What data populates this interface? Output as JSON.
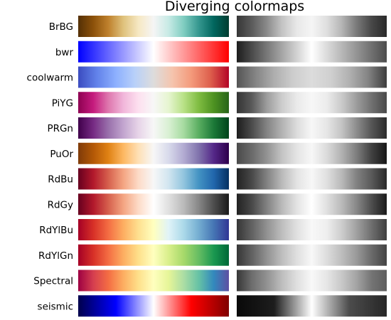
{
  "chart_data": {
    "type": "heatmap",
    "title": "Diverging colormaps",
    "panels": [
      "color",
      "grayscale"
    ],
    "colormaps": [
      {
        "name": "BrBG",
        "colors": [
          "#543005",
          "#8c510a",
          "#bf812d",
          "#dfc27d",
          "#f6e8c3",
          "#f5f5f5",
          "#c7eae5",
          "#80cdc1",
          "#35978f",
          "#01665e",
          "#003c30"
        ]
      },
      {
        "name": "bwr",
        "colors": [
          "#0000ff",
          "#ffffff",
          "#ff0000"
        ]
      },
      {
        "name": "coolwarm",
        "colors": [
          "#3b4cc0",
          "#6282ea",
          "#8db0fe",
          "#b8d0f9",
          "#dddcdc",
          "#f5c4ad",
          "#f49a7b",
          "#de604d",
          "#b40426"
        ]
      },
      {
        "name": "PiYG",
        "colors": [
          "#8e0152",
          "#c51b7d",
          "#de77ae",
          "#f1b6da",
          "#fde0ef",
          "#f7f7f7",
          "#e6f5d0",
          "#b8e186",
          "#7fbc41",
          "#4d9221",
          "#276419"
        ]
      },
      {
        "name": "PRGn",
        "colors": [
          "#40004b",
          "#762a83",
          "#9970ab",
          "#c2a5cf",
          "#e7d4e8",
          "#f7f7f7",
          "#d9f0d3",
          "#a6dba0",
          "#5aae61",
          "#1b7837",
          "#00441b"
        ]
      },
      {
        "name": "PuOr",
        "colors": [
          "#7f3b08",
          "#b35806",
          "#e08214",
          "#fdb863",
          "#fee0b6",
          "#f7f7f7",
          "#d8daeb",
          "#b2abd2",
          "#8073ac",
          "#542788",
          "#2d004b"
        ]
      },
      {
        "name": "RdBu",
        "colors": [
          "#67001f",
          "#b2182b",
          "#d6604d",
          "#f4a582",
          "#fddbc7",
          "#f7f7f7",
          "#d1e5f0",
          "#92c5de",
          "#4393c3",
          "#2166ac",
          "#053061"
        ]
      },
      {
        "name": "RdGy",
        "colors": [
          "#67001f",
          "#b2182b",
          "#d6604d",
          "#f4a582",
          "#fddbc7",
          "#ffffff",
          "#e0e0e0",
          "#bababa",
          "#878787",
          "#4d4d4d",
          "#1a1a1a"
        ]
      },
      {
        "name": "RdYlBu",
        "colors": [
          "#a50026",
          "#d73027",
          "#f46d43",
          "#fdae61",
          "#fee090",
          "#ffffbf",
          "#e0f3f8",
          "#abd9e9",
          "#74add1",
          "#4575b4",
          "#313695"
        ]
      },
      {
        "name": "RdYlGn",
        "colors": [
          "#a50026",
          "#d73027",
          "#f46d43",
          "#fdae61",
          "#fee08b",
          "#ffffbf",
          "#d9ef8b",
          "#a6d96a",
          "#66bd63",
          "#1a9850",
          "#006837"
        ]
      },
      {
        "name": "Spectral",
        "colors": [
          "#9e0142",
          "#d53e4f",
          "#f46d43",
          "#fdae61",
          "#fee08b",
          "#ffffbf",
          "#e6f598",
          "#abdda4",
          "#66c2a5",
          "#3288bd",
          "#5e4fa2"
        ]
      },
      {
        "name": "seismic",
        "colors": [
          "#00004c",
          "#0000ff",
          "#ffffff",
          "#ff0000",
          "#800000"
        ]
      }
    ]
  }
}
